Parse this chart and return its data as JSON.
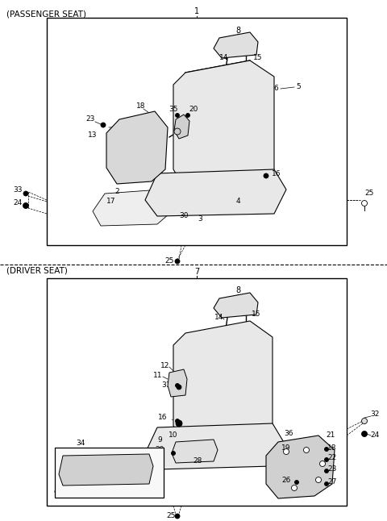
{
  "bg_color": "#ffffff",
  "section1_label": "(PASSENGER SEAT)",
  "section2_label": "(DRIVER SEAT)",
  "figsize": [
    4.8,
    6.46
  ],
  "dpi": 100
}
